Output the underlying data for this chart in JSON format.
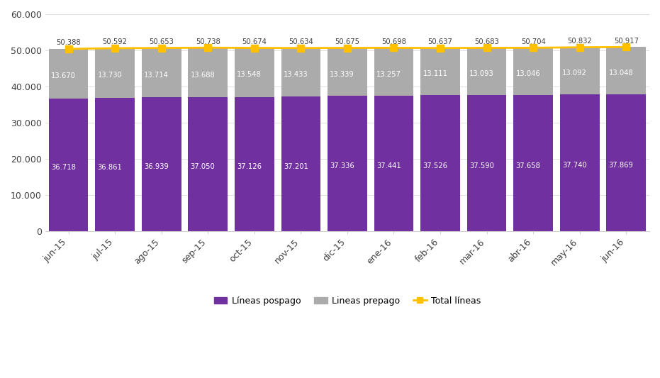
{
  "categories": [
    "jun-15",
    "jul-15",
    "ago-15",
    "sep-15",
    "oct-15",
    "nov-15",
    "dic-15",
    "ene-16",
    "feb-16",
    "mar-16",
    "abr-16",
    "may-16",
    "jun-16"
  ],
  "pospago": [
    36718,
    36861,
    36939,
    37050,
    37126,
    37201,
    37336,
    37441,
    37526,
    37590,
    37658,
    37740,
    37869
  ],
  "prepago": [
    13670,
    13730,
    13714,
    13688,
    13548,
    13433,
    13339,
    13257,
    13111,
    13093,
    13046,
    13092,
    13048
  ],
  "total": [
    50388,
    50592,
    50653,
    50738,
    50674,
    50634,
    50675,
    50698,
    50637,
    50683,
    50704,
    50832,
    50917
  ],
  "pospago_labels": [
    "36.718",
    "36.861",
    "36.939",
    "37.050",
    "37.126",
    "37.201",
    "37.336",
    "37.441",
    "37.526",
    "37.590",
    "37.658",
    "37.740",
    "37.869"
  ],
  "prepago_labels": [
    "13.670",
    "13.730",
    "13.714",
    "13.688",
    "13.548",
    "13.433",
    "13.339",
    "13.257",
    "13.111",
    "13.093",
    "13.046",
    "13.092",
    "13.048"
  ],
  "total_labels": [
    "50.388",
    "50.592",
    "50.653",
    "50.738",
    "50.674",
    "50.634",
    "50.675",
    "50.698",
    "50.637",
    "50.683",
    "50.704",
    "50.832",
    "50.917"
  ],
  "pospago_color": "#7030A0",
  "prepago_color": "#ABABAB",
  "total_color": "#FFC000",
  "background_color": "#FFFFFF",
  "ylim": [
    0,
    60000
  ],
  "yticks": [
    0,
    10000,
    20000,
    30000,
    40000,
    50000,
    60000
  ],
  "ytick_labels": [
    "0",
    "10.000",
    "20.000",
    "30.000",
    "40.000",
    "50.000",
    "60.000"
  ],
  "legend_pospago": "Líneas pospago",
  "legend_prepago": "Lineas prepago",
  "legend_total": "Total líneas"
}
